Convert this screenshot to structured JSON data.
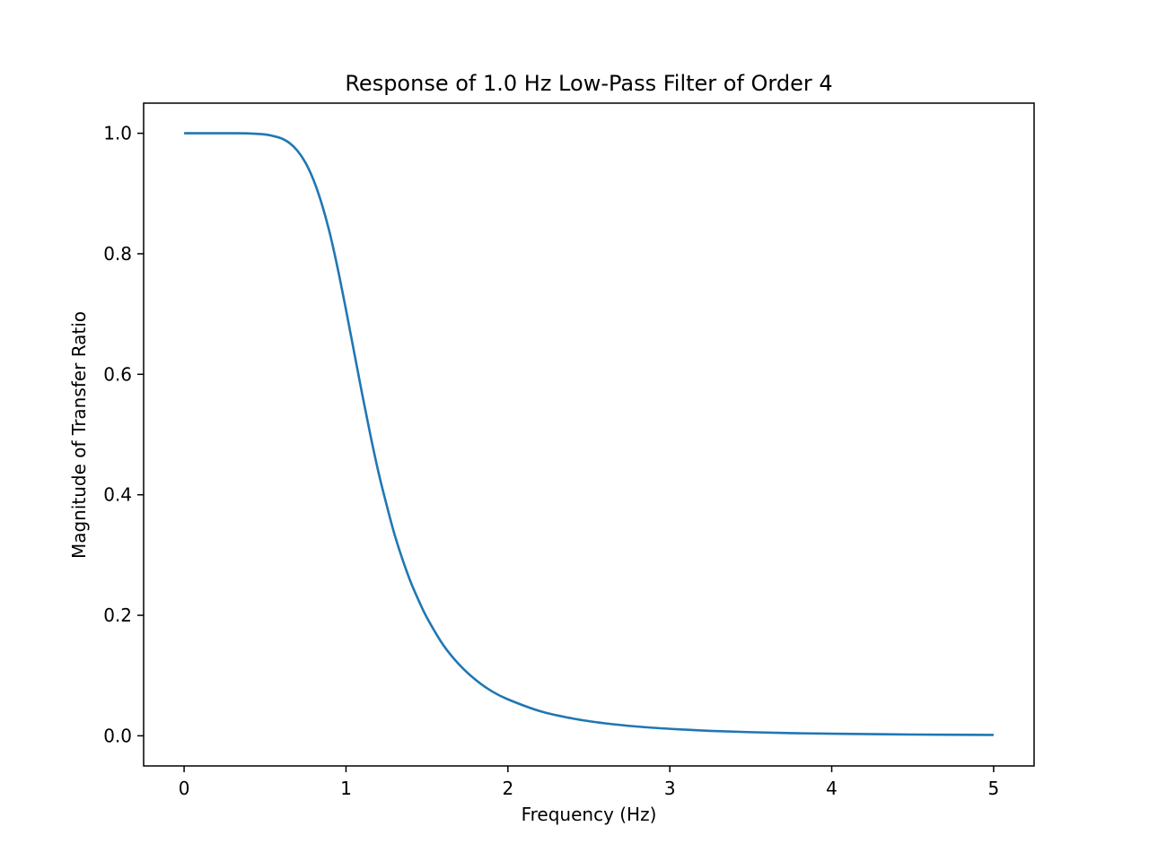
{
  "chart_data": {
    "type": "line",
    "title": "Response of 1.0 Hz Low-Pass Filter of Order 4",
    "xlabel": "Frequency (Hz)",
    "ylabel": "Magnitude of Transfer Ratio",
    "xlim": [
      -0.25,
      5.25
    ],
    "ylim": [
      -0.05,
      1.05
    ],
    "xticks": [
      0,
      1,
      2,
      3,
      4,
      5
    ],
    "yticks": [
      0.0,
      0.2,
      0.4,
      0.6,
      0.8,
      1.0
    ],
    "xtick_labels": [
      "0",
      "1",
      "2",
      "3",
      "4",
      "5"
    ],
    "ytick_labels": [
      "0.0",
      "0.2",
      "0.4",
      "0.6",
      "0.8",
      "1.0"
    ],
    "grid": false,
    "legend": "none",
    "series": [
      {
        "color": "#1f77b4",
        "x": [
          0,
          0.1,
          0.2,
          0.3,
          0.4,
          0.5,
          0.55,
          0.6,
          0.65,
          0.7,
          0.75,
          0.8,
          0.85,
          0.9,
          0.95,
          1.0,
          1.05,
          1.1,
          1.15,
          1.2,
          1.25,
          1.3,
          1.35,
          1.4,
          1.45,
          1.5,
          1.6,
          1.7,
          1.8,
          1.9,
          2.0,
          2.2,
          2.4,
          2.6,
          2.8,
          3.0,
          3.25,
          3.5,
          3.75,
          4.0,
          4.5,
          5.0
        ],
        "y": [
          1.0,
          1.0,
          1.0,
          1.0,
          0.9997,
          0.998,
          0.9954,
          0.9916,
          0.984,
          0.971,
          0.951,
          0.922,
          0.883,
          0.834,
          0.774,
          0.707,
          0.637,
          0.567,
          0.5,
          0.438,
          0.384,
          0.334,
          0.292,
          0.255,
          0.224,
          0.196,
          0.151,
          0.118,
          0.093,
          0.074,
          0.0605,
          0.0408,
          0.0287,
          0.0207,
          0.0153,
          0.0116,
          0.0082,
          0.006,
          0.0045,
          0.0035,
          0.0021,
          0.0014
        ]
      }
    ]
  }
}
